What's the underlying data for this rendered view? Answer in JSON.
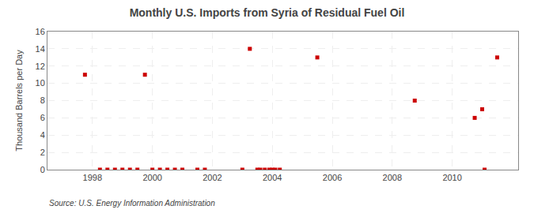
{
  "chart_data": {
    "type": "scatter",
    "title": "Monthly U.S. Imports from Syria of Residual Fuel Oil",
    "ylabel": "Thousand Barrels per Day",
    "annotations": [
      "Source: U.S. Energy Information Administration"
    ],
    "x": [
      1997.75,
      1998.25,
      1998.5,
      1998.75,
      1999.0,
      1999.25,
      1999.5,
      1999.75,
      2000.0,
      2000.25,
      2000.5,
      2000.75,
      2001.0,
      2001.5,
      2001.75,
      2003.0,
      2003.25,
      2003.5,
      2003.6,
      2003.75,
      2003.9,
      2004.0,
      2004.1,
      2004.25,
      2005.5,
      2008.75,
      2010.75,
      2011.0,
      2011.08,
      2011.5
    ],
    "values": [
      11,
      0,
      0,
      0,
      0,
      0,
      0,
      11,
      0,
      0,
      0,
      0,
      0,
      0,
      0,
      0,
      14,
      0,
      0,
      0,
      0,
      0,
      0,
      0,
      13,
      8,
      6,
      7,
      0,
      13
    ],
    "color": "#cc0000",
    "marker": "square",
    "xlim": [
      1996.5,
      2012.2
    ],
    "ylim": [
      0,
      16
    ],
    "xticks": [
      1998,
      2000,
      2002,
      2004,
      2006,
      2008,
      2010
    ],
    "yticks": [
      0,
      2,
      4,
      6,
      8,
      10,
      12,
      14,
      16
    ],
    "grid": true
  }
}
